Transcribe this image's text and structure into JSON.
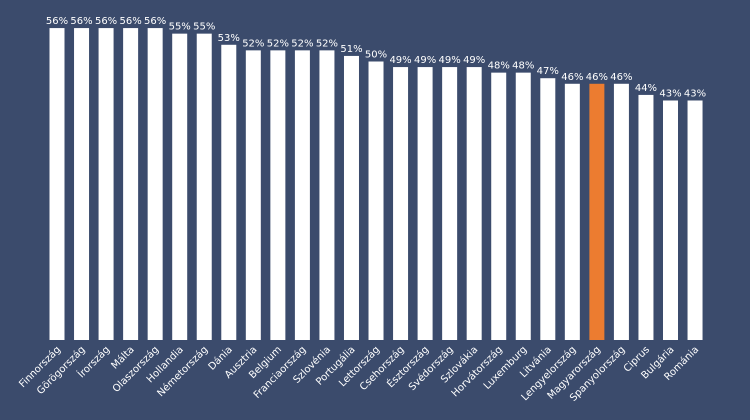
{
  "chart_data": {
    "type": "bar",
    "categories": [
      "Finnország",
      "Görögország",
      "Írország",
      "Málta",
      "Olaszország",
      "Hollandia",
      "Németország",
      "Dánia",
      "Ausztria",
      "Belgium",
      "Franciaország",
      "Szlovénia",
      "Portugália",
      "Lettország",
      "Csehország",
      "Észtország",
      "Svédország",
      "Szlovákia",
      "Horvátország",
      "Luxemburg",
      "Litvánia",
      "Lengyelország",
      "Magyarország",
      "Spanyolország",
      "Ciprus",
      "Bulgária",
      "Románia"
    ],
    "values": [
      56,
      56,
      56,
      56,
      56,
      55,
      55,
      53,
      52,
      52,
      52,
      52,
      51,
      50,
      49,
      49,
      49,
      49,
      48,
      48,
      47,
      46,
      46,
      46,
      44,
      43,
      43
    ],
    "value_labels": [
      "56%",
      "56%",
      "56%",
      "56%",
      "56%",
      "55%",
      "55%",
      "53%",
      "52%",
      "52%",
      "52%",
      "52%",
      "51%",
      "50%",
      "49%",
      "49%",
      "49%",
      "49%",
      "48%",
      "48%",
      "47%",
      "46%",
      "46%",
      "46%",
      "44%",
      "43%",
      "43%"
    ],
    "colors": [
      "#ffffff",
      "#ffffff",
      "#ffffff",
      "#ffffff",
      "#ffffff",
      "#ffffff",
      "#ffffff",
      "#ffffff",
      "#ffffff",
      "#ffffff",
      "#ffffff",
      "#ffffff",
      "#ffffff",
      "#ffffff",
      "#ffffff",
      "#ffffff",
      "#ffffff",
      "#ffffff",
      "#ffffff",
      "#ffffff",
      "#ffffff",
      "#ffffff",
      "#ec7c30",
      "#ffffff",
      "#ffffff",
      "#ffffff",
      "#ffffff"
    ]
  }
}
